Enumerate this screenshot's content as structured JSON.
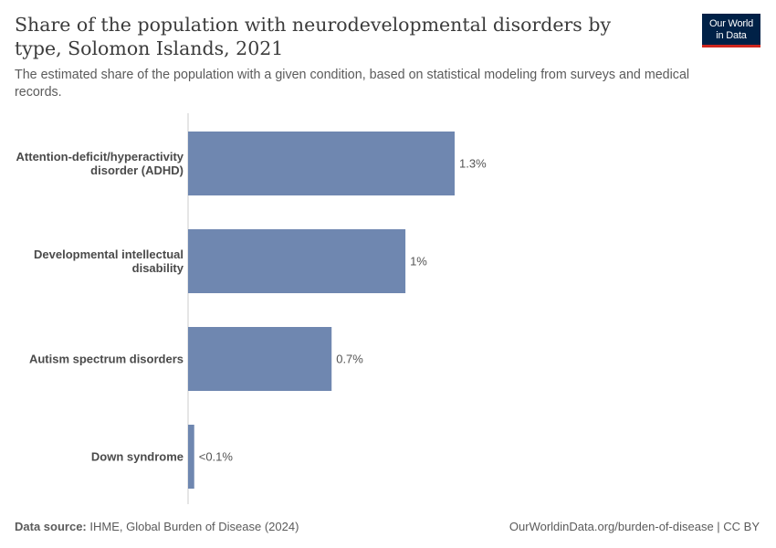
{
  "header": {
    "title": "Share of the population with neurodevelopmental disorders by type, Solomon Islands, 2021",
    "subtitle": "The estimated share of the population with a given condition, based on statistical modeling from surveys and medical records."
  },
  "logo": {
    "line1": "Our World",
    "line2": "in Data"
  },
  "footer": {
    "source_label": "Data source:",
    "source_text": "IHME, Global Burden of Disease (2024)",
    "url_text": "OurWorldinData.org/burden-of-disease | CC BY"
  },
  "colors": {
    "bar": "#6f87b0",
    "axis": "#cccccc",
    "logo_bg": "#002147",
    "logo_accent": "#ce261e"
  },
  "chart_data": {
    "type": "bar",
    "orientation": "horizontal",
    "categories": [
      [
        "Attention-deficit/hyperactivity",
        "disorder (ADHD)"
      ],
      [
        "Developmental intellectual",
        "disability"
      ],
      [
        "Autism spectrum disorders"
      ],
      [
        "Down syndrome"
      ]
    ],
    "values": [
      1.3,
      1.06,
      0.7,
      0.03
    ],
    "value_labels": [
      "1.3%",
      "1%",
      "0.7%",
      "<0.1%"
    ],
    "unit": "%",
    "xlim": [
      0,
      1.3
    ],
    "grid": false
  }
}
